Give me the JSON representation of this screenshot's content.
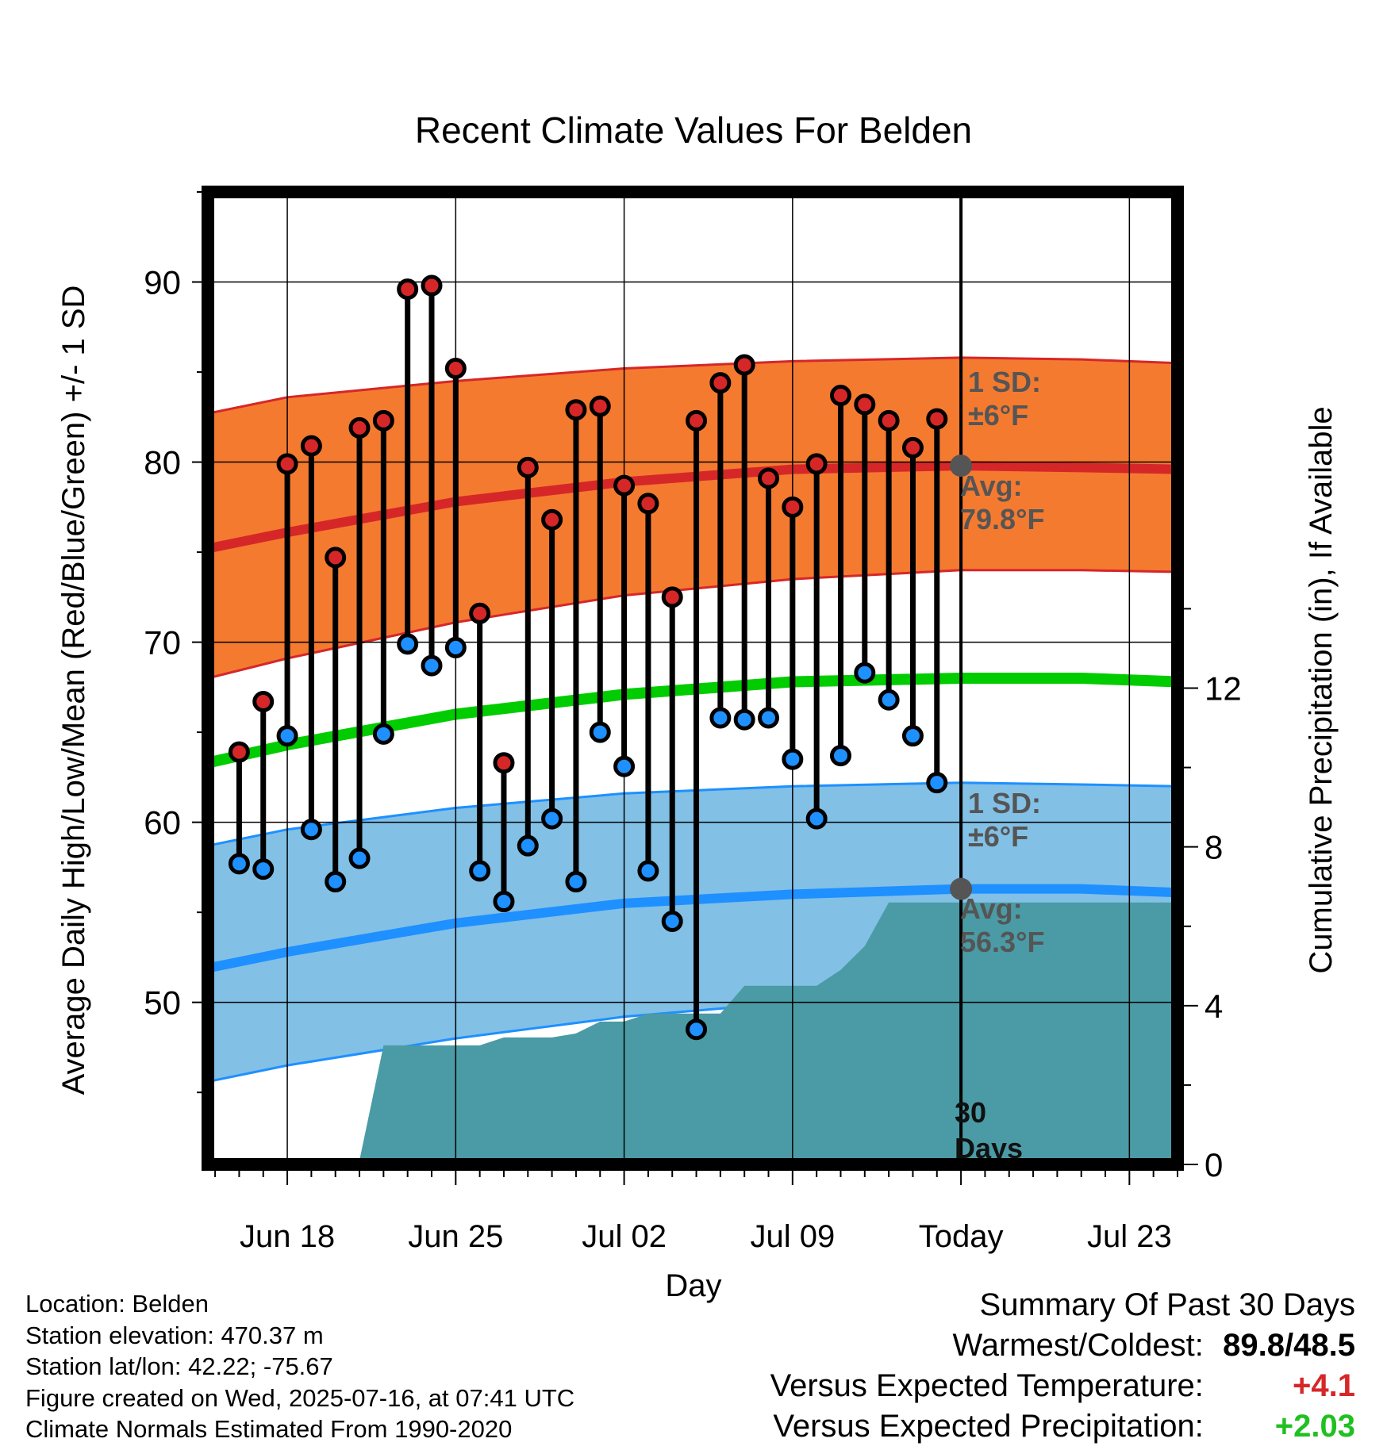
{
  "chart_data": {
    "type": "line",
    "title": "Recent Climate Values For Belden",
    "xlabel": "Day",
    "ylabel_left": "Average Daily High/Low/Mean (Red/Blue/Green) +/- 1 SD",
    "ylabel_right": "Cumulative Precipitation (in), If Available",
    "x_tick_labels": [
      "Jun 18",
      "Jun 25",
      "Jul 02",
      "Jul 09",
      "Today",
      "Jul 23"
    ],
    "left_ticks": [
      "50",
      "60",
      "70",
      "80",
      "90"
    ],
    "right_ticks": [
      "0",
      "4",
      "8",
      "12"
    ],
    "ylim_left": [
      41,
      95
    ],
    "ylim_right": [
      0,
      24.5
    ],
    "x_range_days_from_jun18": [
      -3.3,
      37
    ],
    "today_offset_days": 28,
    "observed_days_from_jun18": [
      -2,
      -1,
      0,
      1,
      2,
      3,
      4,
      5,
      6,
      7,
      8,
      9,
      10,
      11,
      12,
      13,
      14,
      15,
      16,
      17,
      18,
      19,
      20,
      21,
      22,
      23,
      24,
      25,
      26,
      27
    ],
    "daily_high": [
      63.9,
      66.7,
      79.9,
      80.9,
      74.7,
      81.9,
      82.3,
      89.6,
      89.8,
      85.2,
      71.6,
      63.3,
      79.7,
      76.8,
      82.9,
      83.1,
      78.7,
      77.7,
      72.5,
      82.3,
      84.4,
      85.4,
      79.1,
      77.5,
      79.9,
      83.7,
      83.2,
      82.3,
      80.8,
      82.4
    ],
    "daily_low": [
      57.7,
      57.4,
      64.8,
      59.6,
      56.7,
      58.0,
      64.9,
      69.9,
      68.7,
      69.7,
      57.3,
      55.6,
      58.7,
      60.2,
      56.7,
      65.0,
      63.1,
      57.3,
      54.5,
      48.5,
      65.8,
      65.7,
      65.8,
      63.5,
      60.2,
      63.7,
      68.3,
      66.8,
      64.8,
      62.2
    ],
    "normal_high": {
      "x": [
        -3.3,
        0,
        7,
        14,
        21,
        28,
        33,
        37
      ],
      "avg": [
        75.2,
        76.1,
        77.8,
        78.9,
        79.6,
        79.8,
        79.7,
        79.6
      ],
      "upper": [
        82.7,
        83.6,
        84.5,
        85.2,
        85.6,
        85.8,
        85.7,
        85.5
      ],
      "lower": [
        68.0,
        69.1,
        71.1,
        72.6,
        73.5,
        74.0,
        74.0,
        73.9
      ]
    },
    "normal_mean": {
      "x": [
        -3.3,
        0,
        7,
        14,
        21,
        28,
        33,
        37
      ],
      "avg": [
        63.3,
        64.3,
        66.0,
        67.1,
        67.8,
        68.0,
        68.0,
        67.8
      ]
    },
    "normal_low": {
      "x": [
        -3.3,
        0,
        7,
        14,
        21,
        28,
        33,
        37
      ],
      "avg": [
        51.9,
        52.8,
        54.4,
        55.5,
        56.0,
        56.3,
        56.3,
        56.1
      ],
      "upper": [
        58.7,
        59.6,
        60.8,
        61.6,
        62.0,
        62.2,
        62.1,
        62.0
      ],
      "lower": [
        45.6,
        46.5,
        48.0,
        49.2,
        50.0,
        50.5,
        50.5,
        50.4
      ]
    },
    "cumulative_precip": {
      "x": [
        -3.3,
        0,
        1,
        2,
        3,
        4,
        5,
        6,
        7,
        8,
        9,
        10,
        11,
        12,
        13,
        14,
        15,
        16,
        17,
        18,
        19,
        20,
        21,
        22,
        23,
        24,
        25,
        26,
        27,
        28,
        37
      ],
      "y": [
        0,
        0,
        0.1,
        0.1,
        0.1,
        3.0,
        3.0,
        3.0,
        3.0,
        3.0,
        3.2,
        3.2,
        3.2,
        3.3,
        3.6,
        3.6,
        3.8,
        3.8,
        3.8,
        3.8,
        4.5,
        4.5,
        4.5,
        4.5,
        4.9,
        5.5,
        6.6,
        6.6,
        6.6,
        6.6,
        6.6
      ]
    },
    "annotations": {
      "high_sd_line1": "1 SD:",
      "high_sd_line2": "±6°F",
      "high_avg_line1": "Avg:",
      "high_avg_line2": "79.8°F",
      "low_sd_line1": "1 SD:",
      "low_sd_line2": "±6°F",
      "low_avg_line1": "Avg:",
      "low_avg_line2": "56.3°F",
      "days_line1": "30",
      "days_line2": "Days"
    },
    "colors": {
      "high_band": "#f47a30",
      "high_line": "#d62728",
      "mean_line": "#00cc00",
      "low_band": "#82c0e6",
      "low_line": "#1e90ff",
      "precip": "#4a9ba5",
      "high_marker": "#d62728",
      "low_marker": "#1e90ff"
    },
    "grid": true
  },
  "info": {
    "location": "Location: Belden",
    "elevation": "Station elevation: 470.37 m",
    "latlon": "Station lat/lon: 42.22; -75.67",
    "created": "Figure created on Wed, 2025-07-16, at 07:41 UTC",
    "normals": "Climate Normals Estimated From 1990-2020"
  },
  "summary": {
    "title": "Summary Of Past 30 Days",
    "warm_cold_label": "Warmest/Coldest:",
    "warm_cold_value": "89.8/48.5",
    "temp_label": "Versus Expected Temperature:",
    "temp_value": "+4.1",
    "precip_label": "Versus Expected Precipitation:",
    "precip_value": "+2.03"
  }
}
